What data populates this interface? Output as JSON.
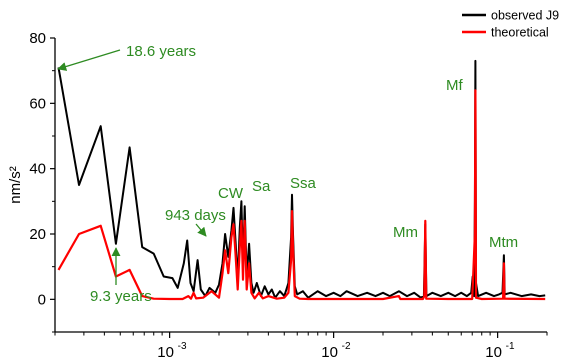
{
  "chart_data": {
    "type": "line",
    "title": "",
    "xlabel": "",
    "ylabel": "nm/s²",
    "x_scale": "log",
    "xlim": [
      0.0002,
      0.2
    ],
    "ylim": [
      -10,
      80
    ],
    "x_ticks": [
      {
        "value": 0.001,
        "base": "10",
        "exp": "-3"
      },
      {
        "value": 0.01,
        "base": "10",
        "exp": "-2"
      },
      {
        "value": 0.1,
        "base": "10",
        "exp": "-1"
      }
    ],
    "y_ticks": [
      0,
      20,
      40,
      60,
      80
    ],
    "legend": {
      "position": "top-right",
      "entries": [
        {
          "label": "observed J9",
          "color": "#000000"
        },
        {
          "label": "theoretical",
          "color": "#ff0000"
        }
      ]
    },
    "series": [
      {
        "name": "observed J9",
        "color": "#000000",
        "points": [
          [
            0.00021,
            71
          ],
          [
            0.00028,
            35
          ],
          [
            0.00038,
            53
          ],
          [
            0.00047,
            17
          ],
          [
            0.00057,
            46.5
          ],
          [
            0.00068,
            16
          ],
          [
            0.0008,
            14
          ],
          [
            0.00092,
            7
          ],
          [
            0.00104,
            6.5
          ],
          [
            0.00112,
            3.5
          ],
          [
            0.00122,
            11
          ],
          [
            0.00128,
            18
          ],
          [
            0.00134,
            5
          ],
          [
            0.0014,
            2.5
          ],
          [
            0.00148,
            12
          ],
          [
            0.00155,
            3
          ],
          [
            0.00165,
            1
          ],
          [
            0.00175,
            3.5
          ],
          [
            0.0019,
            2
          ],
          [
            0.002,
            4.5
          ],
          [
            0.0021,
            11
          ],
          [
            0.00218,
            20
          ],
          [
            0.00228,
            13
          ],
          [
            0.00238,
            21
          ],
          [
            0.00245,
            28
          ],
          [
            0.00252,
            18
          ],
          [
            0.0026,
            6
          ],
          [
            0.00268,
            22
          ],
          [
            0.00274,
            30
          ],
          [
            0.0028,
            10
          ],
          [
            0.00287,
            28.5
          ],
          [
            0.00295,
            7
          ],
          [
            0.00305,
            17
          ],
          [
            0.00315,
            5
          ],
          [
            0.00325,
            2
          ],
          [
            0.0034,
            5
          ],
          [
            0.0036,
            1
          ],
          [
            0.0038,
            4
          ],
          [
            0.004,
            1.5
          ],
          [
            0.0042,
            3
          ],
          [
            0.0044,
            0.5
          ],
          [
            0.0047,
            2.5
          ],
          [
            0.005,
            1
          ],
          [
            0.0053,
            5
          ],
          [
            0.0055,
            19
          ],
          [
            0.00557,
            32
          ],
          [
            0.00565,
            20
          ],
          [
            0.0058,
            4
          ],
          [
            0.006,
            1.5
          ],
          [
            0.0065,
            2.5
          ],
          [
            0.007,
            0.5
          ],
          [
            0.008,
            2.5
          ],
          [
            0.009,
            1
          ],
          [
            0.01,
            2
          ],
          [
            0.011,
            1
          ],
          [
            0.012,
            2.5
          ],
          [
            0.014,
            1
          ],
          [
            0.016,
            2
          ],
          [
            0.018,
            1
          ],
          [
            0.02,
            2
          ],
          [
            0.022,
            1
          ],
          [
            0.025,
            2.5
          ],
          [
            0.028,
            1
          ],
          [
            0.031,
            2
          ],
          [
            0.034,
            0.5
          ],
          [
            0.0355,
            1
          ],
          [
            0.0362,
            23
          ],
          [
            0.0368,
            1
          ],
          [
            0.04,
            2
          ],
          [
            0.045,
            1
          ],
          [
            0.05,
            2
          ],
          [
            0.055,
            1
          ],
          [
            0.06,
            2
          ],
          [
            0.065,
            1
          ],
          [
            0.069,
            2
          ],
          [
            0.0705,
            7
          ],
          [
            0.072,
            1
          ],
          [
            0.0727,
            30
          ],
          [
            0.0732,
            73
          ],
          [
            0.0738,
            5
          ],
          [
            0.076,
            1
          ],
          [
            0.085,
            2
          ],
          [
            0.095,
            1
          ],
          [
            0.102,
            1.5
          ],
          [
            0.107,
            2
          ],
          [
            0.1092,
            13.5
          ],
          [
            0.1105,
            1.5
          ],
          [
            0.12,
            2
          ],
          [
            0.14,
            1
          ],
          [
            0.16,
            1.5
          ],
          [
            0.18,
            1
          ],
          [
            0.195,
            1.2
          ]
        ]
      },
      {
        "name": "theoretical",
        "color": "#ff0000",
        "points": [
          [
            0.00021,
            9
          ],
          [
            0.00028,
            20
          ],
          [
            0.00038,
            22.5
          ],
          [
            0.00047,
            7
          ],
          [
            0.00057,
            9
          ],
          [
            0.00068,
            1
          ],
          [
            0.0008,
            0.2
          ],
          [
            0.001,
            0.1
          ],
          [
            0.0012,
            0.1
          ],
          [
            0.0013,
            1
          ],
          [
            0.00135,
            0.2
          ],
          [
            0.0014,
            2
          ],
          [
            0.00145,
            0.3
          ],
          [
            0.0016,
            0.5
          ],
          [
            0.0018,
            2.5
          ],
          [
            0.002,
            0.5
          ],
          [
            0.0021,
            8
          ],
          [
            0.00218,
            15
          ],
          [
            0.00228,
            8
          ],
          [
            0.00238,
            19
          ],
          [
            0.00245,
            23
          ],
          [
            0.00252,
            14
          ],
          [
            0.0026,
            3
          ],
          [
            0.00268,
            16
          ],
          [
            0.00274,
            24
          ],
          [
            0.0028,
            6
          ],
          [
            0.00287,
            24
          ],
          [
            0.00295,
            3
          ],
          [
            0.00305,
            11
          ],
          [
            0.00315,
            2
          ],
          [
            0.0033,
            0.3
          ],
          [
            0.0035,
            2
          ],
          [
            0.0037,
            0.3
          ],
          [
            0.004,
            1
          ],
          [
            0.0045,
            0.2
          ],
          [
            0.005,
            0.5
          ],
          [
            0.0053,
            2
          ],
          [
            0.0055,
            12
          ],
          [
            0.00557,
            27
          ],
          [
            0.00565,
            16
          ],
          [
            0.0058,
            1
          ],
          [
            0.0062,
            0.2
          ],
          [
            0.007,
            0.1
          ],
          [
            0.01,
            0.1
          ],
          [
            0.02,
            0.1
          ],
          [
            0.025,
            1
          ],
          [
            0.0255,
            0.1
          ],
          [
            0.035,
            0.1
          ],
          [
            0.0357,
            1
          ],
          [
            0.0362,
            24
          ],
          [
            0.0367,
            0.2
          ],
          [
            0.05,
            0.1
          ],
          [
            0.07,
            0.1
          ],
          [
            0.0727,
            20
          ],
          [
            0.0732,
            64
          ],
          [
            0.0738,
            0.5
          ],
          [
            0.08,
            0.1
          ],
          [
            0.108,
            0.2
          ],
          [
            0.1092,
            11
          ],
          [
            0.1102,
            0.2
          ],
          [
            0.195,
            0.1
          ]
        ]
      }
    ],
    "annotations": [
      {
        "label": "18.6 years",
        "color": "#2e8b22"
      },
      {
        "label": "9.3 years",
        "color": "#2e8b22"
      },
      {
        "label": "943 days",
        "color": "#2e8b22"
      },
      {
        "label": "CW",
        "color": "#2e8b22"
      },
      {
        "label": "Sa",
        "color": "#2e8b22"
      },
      {
        "label": "Ssa",
        "color": "#2e8b22"
      },
      {
        "label": "Mm",
        "color": "#2e8b22"
      },
      {
        "label": "Mf",
        "color": "#2e8b22"
      },
      {
        "label": "Mtm",
        "color": "#2e8b22"
      }
    ]
  }
}
